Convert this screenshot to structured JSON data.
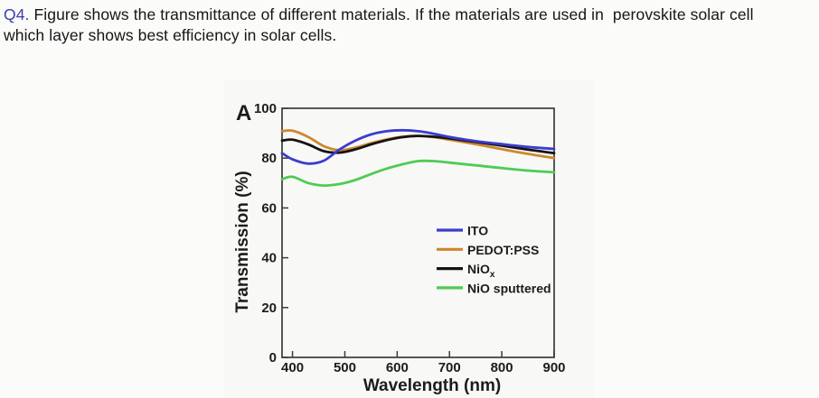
{
  "question": {
    "number": "Q4.",
    "line1": " Figure shows the transmittance of different materials. If the materials are used in  perovskite solar cell",
    "line2": "which layer shows best efficiency in solar cells."
  },
  "colors": {
    "question_number_accent": "#3d3dae",
    "axis": "#3b3b3b"
  },
  "chart_data": {
    "type": "line",
    "panel_label": "A",
    "title": "",
    "xlabel": "Wavelength (nm)",
    "ylabel": "Transmission (%)",
    "xlim": [
      380,
      900
    ],
    "ylim": [
      0,
      100
    ],
    "xticks": [
      400,
      500,
      600,
      700,
      800,
      900
    ],
    "yticks": [
      0,
      20,
      40,
      60,
      80,
      100
    ],
    "grid": false,
    "legend_position": "inside-right-middle",
    "x": [
      380,
      400,
      430,
      460,
      490,
      520,
      550,
      580,
      610,
      640,
      670,
      700,
      750,
      800,
      850,
      900
    ],
    "series": [
      {
        "name": "ITO",
        "subscript": "",
        "color": "#3c3ccd",
        "values": [
          82,
          79.5,
          77.8,
          79,
          83.5,
          87,
          89.5,
          90.8,
          91.2,
          90.8,
          89.8,
          88.5,
          86.8,
          85.6,
          84.5,
          83.7
        ]
      },
      {
        "name": "PEDOT:PSS",
        "subscript": "",
        "color": "#cf862e",
        "values": [
          90.8,
          91,
          88.5,
          84.8,
          83.2,
          84.2,
          86,
          87.5,
          88.6,
          88.9,
          88.4,
          87.4,
          85.6,
          83.6,
          81.7,
          80
        ]
      },
      {
        "name": "NiO",
        "subscript": "x",
        "color": "#131313",
        "values": [
          87,
          87.4,
          85.5,
          82.8,
          82.2,
          83.5,
          85.5,
          87.2,
          88.4,
          88.9,
          88.6,
          87.9,
          86.5,
          85,
          83.4,
          82
        ]
      },
      {
        "name": "NiO sputtered",
        "subscript": "",
        "color": "#4ecb54",
        "values": [
          71.5,
          72.5,
          70,
          69,
          69.6,
          71.2,
          73.6,
          75.8,
          77.5,
          78.8,
          78.8,
          78.2,
          77.1,
          76,
          75,
          74.3
        ]
      }
    ]
  }
}
